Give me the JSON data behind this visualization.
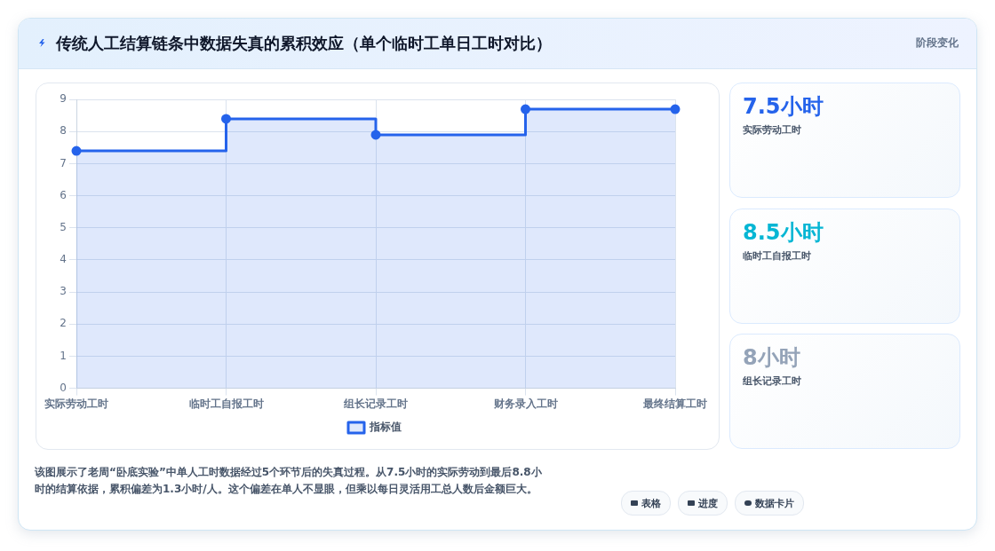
{
  "chart_data": {
    "type": "step",
    "title": "传统人工结算链条中数据失真的累积效应（单个临时工单日工时对比）",
    "subtitle": "阶段变化",
    "categories": [
      "实际劳动工时",
      "临时工自报工时",
      "组长记录工时",
      "财务录入工时",
      "最终结算工时"
    ],
    "series": [
      {
        "name": "指标值",
        "color": "#2563eb",
        "values": [
          7.4,
          8.4,
          7.9,
          8.7,
          8.7
        ]
      }
    ],
    "ylim": [
      0,
      9
    ],
    "yticks": [
      0,
      1,
      2,
      3,
      4,
      5,
      6,
      7,
      8,
      9
    ],
    "grid": true,
    "legend": "bottom",
    "marker": "circle",
    "annotations": [
      "7.5小时",
      "实际劳动工时",
      "8.5小时",
      "临时工自报工时",
      "8小时",
      "组长记录工时",
      "该图展示了老周“卧底实验”中单人工时数据经过5个环节后的失真过程。从7.5小时的实际劳动到最后8.8小时的结算依据，累积偏差为1.3小时/人。这个偏差在单人不显眼，但乘以每日灵活用工总人数后金额巨大。",
      "表格",
      "进度",
      "数据卡片"
    ]
  }
}
